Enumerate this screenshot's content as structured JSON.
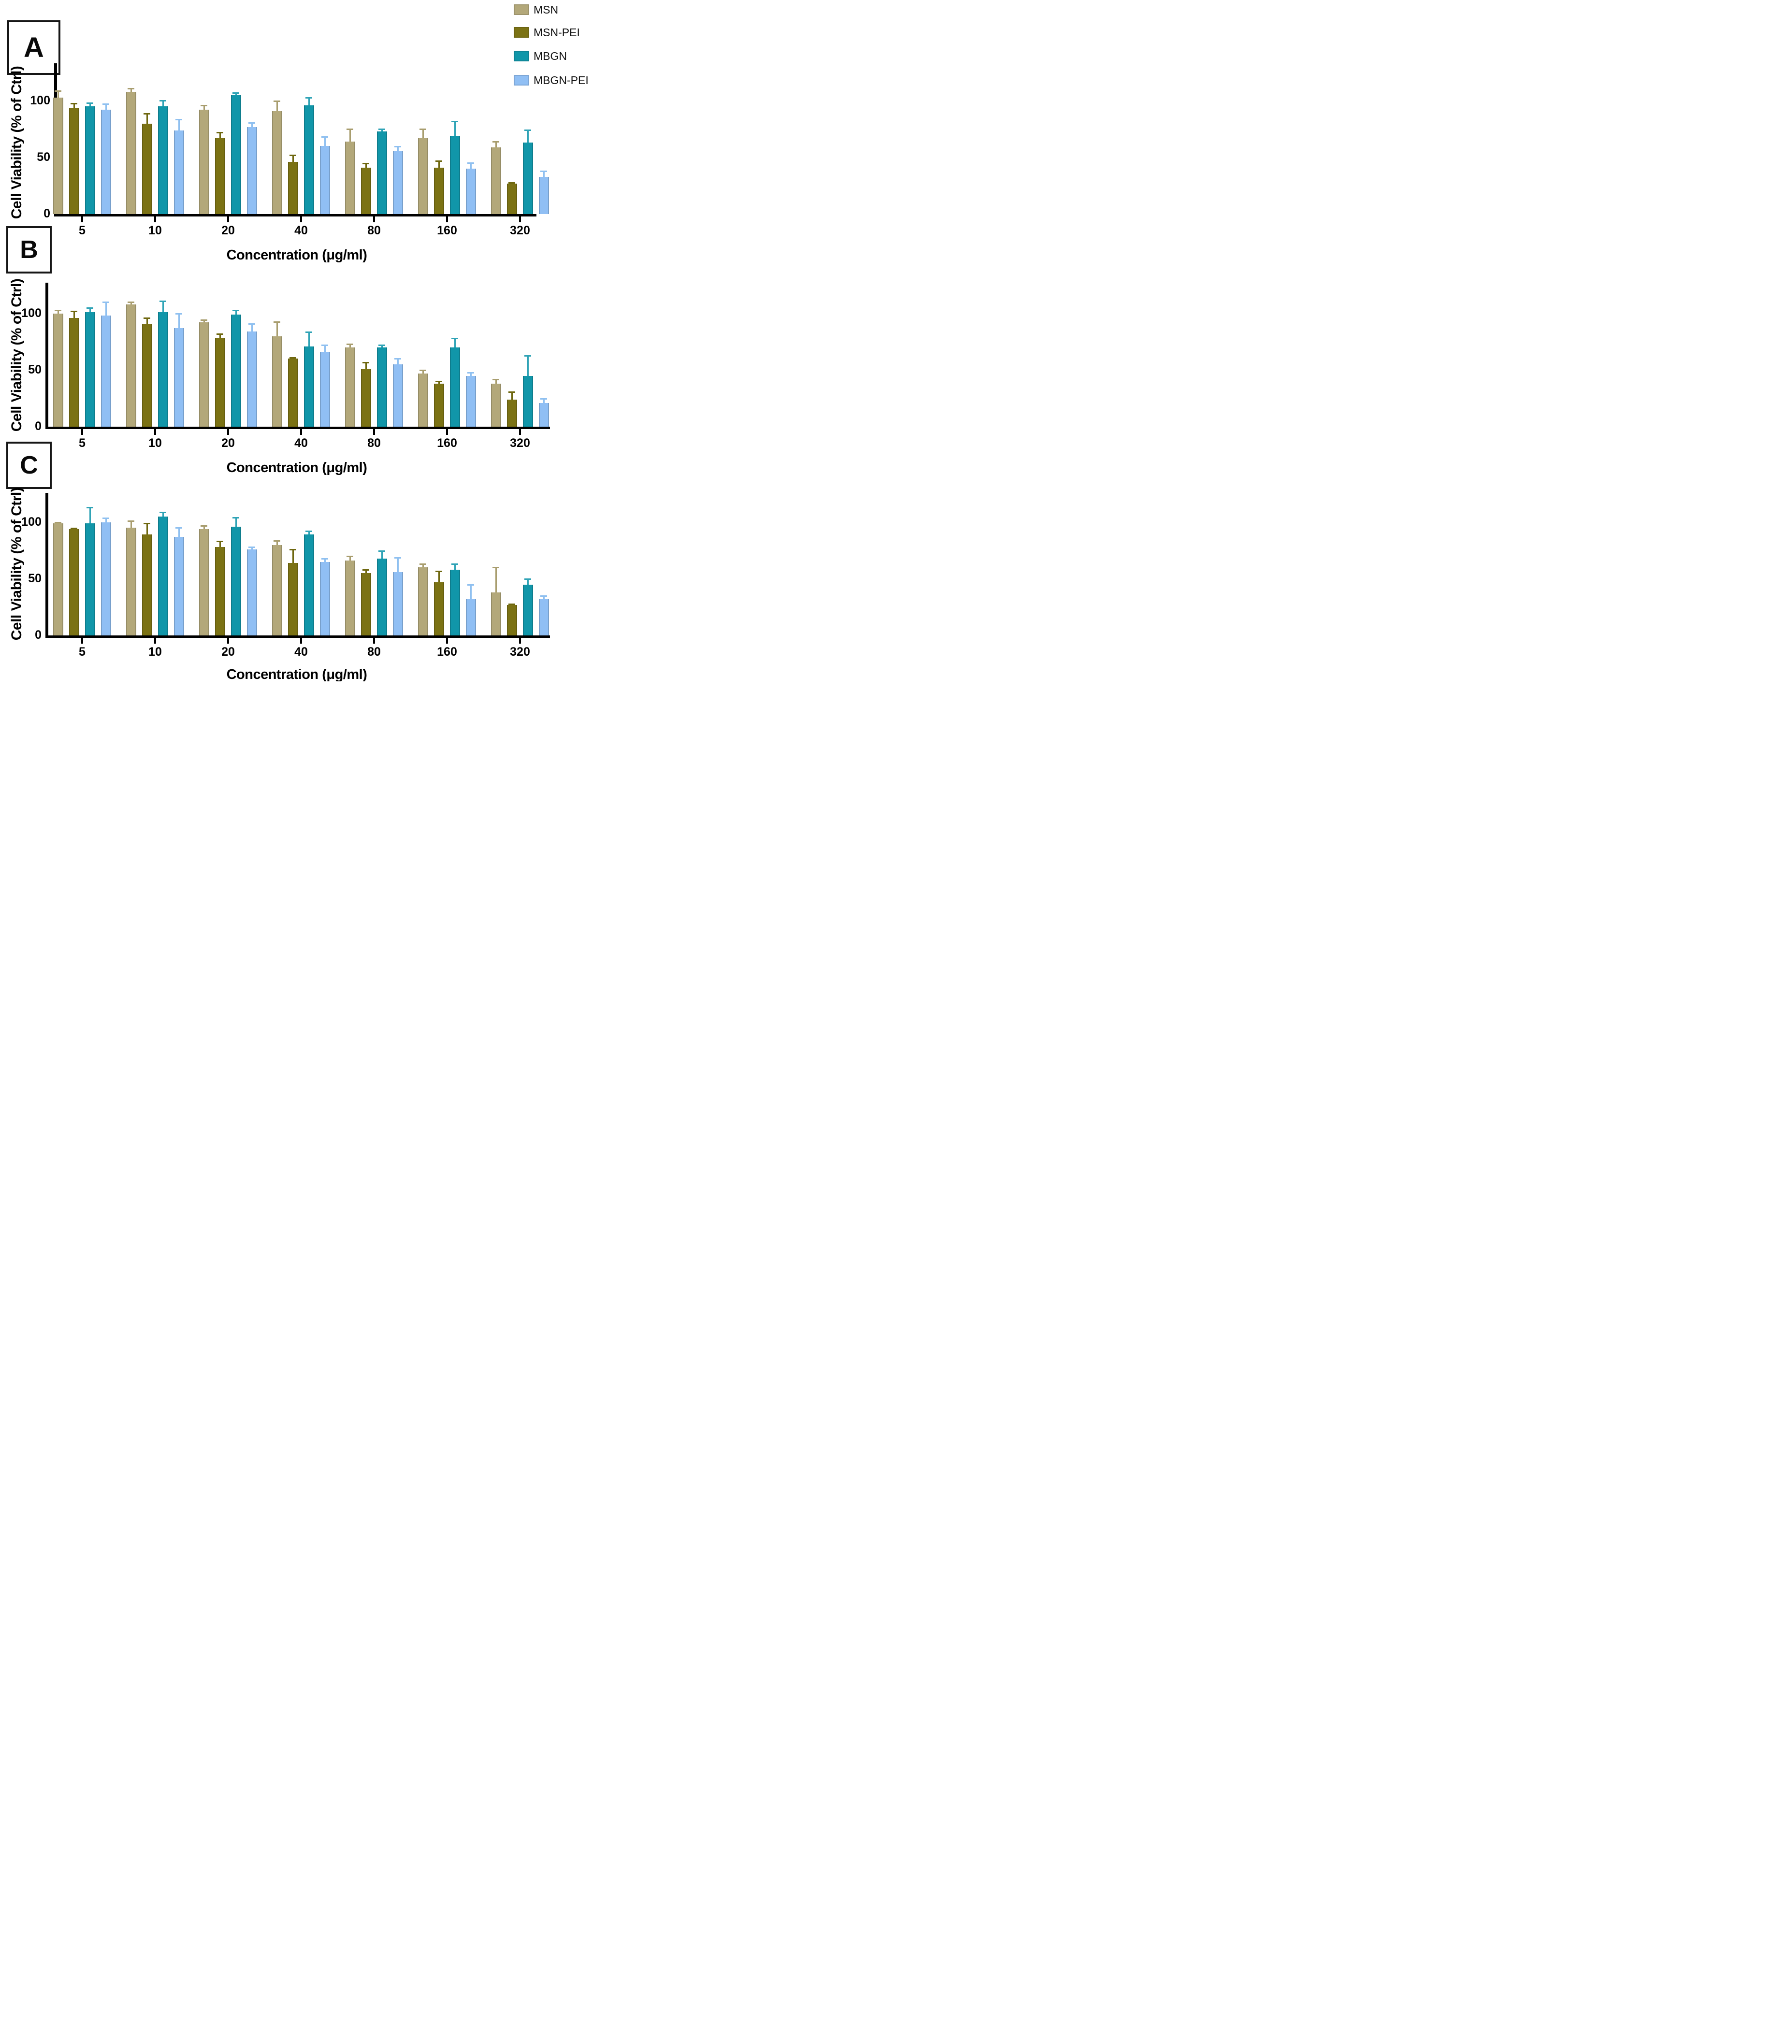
{
  "figure": {
    "background": "#ffffff",
    "axis_color": "#000000"
  },
  "legend": {
    "items": [
      {
        "label": "MSN",
        "color": "#b3a87a"
      },
      {
        "label": "MSN-PEI",
        "color": "#7b7214"
      },
      {
        "label": "MBGN",
        "color": "#1196a9"
      },
      {
        "label": "MBGN-PEI",
        "color": "#90bff4"
      }
    ]
  },
  "chart_data": [
    {
      "panel": "A",
      "type": "bar",
      "title": "",
      "xlabel": "Concentration (μg/ml)",
      "ylabel": "Cell Viability (% of Ctrl)",
      "categories": [
        "5",
        "10",
        "20",
        "40",
        "80",
        "160",
        "320"
      ],
      "yticks": [
        "0",
        "50",
        "100"
      ],
      "ylim": [
        0,
        133
      ],
      "grid": false,
      "legend_position": "top-right",
      "error_bars": "upper",
      "series": [
        {
          "name": "MSN",
          "color": "#b3a87a",
          "error_color": "#a89d6e",
          "values": [
            103,
            108,
            92,
            91,
            64,
            67,
            59
          ],
          "errors": [
            6,
            3,
            4,
            9,
            11,
            8,
            5
          ]
        },
        {
          "name": "MSN-PEI",
          "color": "#7b7214",
          "error_color": "#6e670f",
          "values": [
            94,
            80,
            67,
            46,
            41,
            41,
            27
          ],
          "errors": [
            4,
            9,
            5,
            6,
            4,
            6,
            1
          ]
        },
        {
          "name": "MBGN",
          "color": "#1196a9",
          "error_color": "#2fa3b6",
          "values": [
            95,
            95,
            105,
            96,
            73,
            69,
            63
          ],
          "errors": [
            3,
            5,
            2,
            7,
            2,
            13,
            11
          ]
        },
        {
          "name": "MBGN-PEI",
          "color": "#90bff4",
          "error_color": "#8fc0f0",
          "values": [
            92,
            74,
            77,
            60,
            56,
            40,
            33
          ],
          "errors": [
            5,
            10,
            4,
            8,
            4,
            5,
            5
          ]
        }
      ]
    },
    {
      "panel": "B",
      "type": "bar",
      "title": "",
      "xlabel": "Concentration (μg/ml)",
      "ylabel": "Cell Viability (% of Ctrl)",
      "categories": [
        "5",
        "10",
        "20",
        "40",
        "80",
        "160",
        "320"
      ],
      "yticks": [
        "0",
        "50",
        "100"
      ],
      "ylim": [
        0,
        127
      ],
      "grid": false,
      "error_bars": "upper",
      "series": [
        {
          "name": "MSN",
          "color": "#b3a87a",
          "error_color": "#a89d6e",
          "values": [
            100,
            108,
            92,
            80,
            70,
            47,
            38
          ],
          "errors": [
            3,
            2,
            2,
            13,
            3,
            3,
            4
          ]
        },
        {
          "name": "MSN-PEI",
          "color": "#7b7214",
          "error_color": "#6e670f",
          "values": [
            96,
            91,
            78,
            60,
            51,
            38,
            24
          ],
          "errors": [
            6,
            5,
            4,
            1,
            6,
            2,
            7
          ]
        },
        {
          "name": "MBGN",
          "color": "#1196a9",
          "error_color": "#2fa3b6",
          "values": [
            101,
            101,
            99,
            71,
            70,
            70,
            45
          ],
          "errors": [
            4,
            10,
            4,
            13,
            2,
            8,
            18
          ]
        },
        {
          "name": "MBGN-PEI",
          "color": "#90bff4",
          "error_color": "#8fc0f0",
          "values": [
            98,
            87,
            84,
            66,
            55,
            45,
            21
          ],
          "errors": [
            12,
            13,
            7,
            6,
            5,
            3,
            4
          ]
        }
      ]
    },
    {
      "panel": "C",
      "type": "bar",
      "title": "",
      "xlabel": "Concentration (μg/ml)",
      "ylabel": "Cell Viability (% of Ctrl)",
      "categories": [
        "5",
        "10",
        "20",
        "40",
        "80",
        "160",
        "320"
      ],
      "yticks": [
        "0",
        "50",
        "100"
      ],
      "ylim": [
        0,
        126
      ],
      "grid": false,
      "error_bars": "upper",
      "series": [
        {
          "name": "MSN",
          "color": "#b3a87a",
          "error_color": "#a89d6e",
          "values": [
            99,
            95,
            94,
            80,
            66,
            60,
            38
          ],
          "errors": [
            1,
            6,
            3,
            4,
            4,
            3,
            22
          ]
        },
        {
          "name": "MSN-PEI",
          "color": "#7b7214",
          "error_color": "#6e670f",
          "values": [
            94,
            89,
            78,
            64,
            55,
            47,
            27
          ],
          "errors": [
            1,
            10,
            5,
            12,
            3,
            10,
            1
          ]
        },
        {
          "name": "MBGN",
          "color": "#1196a9",
          "error_color": "#2fa3b6",
          "values": [
            99,
            105,
            96,
            89,
            68,
            58,
            45
          ],
          "errors": [
            14,
            4,
            8,
            3,
            7,
            5,
            5
          ]
        },
        {
          "name": "MBGN-PEI",
          "color": "#90bff4",
          "error_color": "#8fc0f0",
          "values": [
            100,
            87,
            76,
            65,
            56,
            32,
            32
          ],
          "errors": [
            4,
            8,
            2,
            3,
            13,
            13,
            3
          ]
        }
      ]
    }
  ]
}
